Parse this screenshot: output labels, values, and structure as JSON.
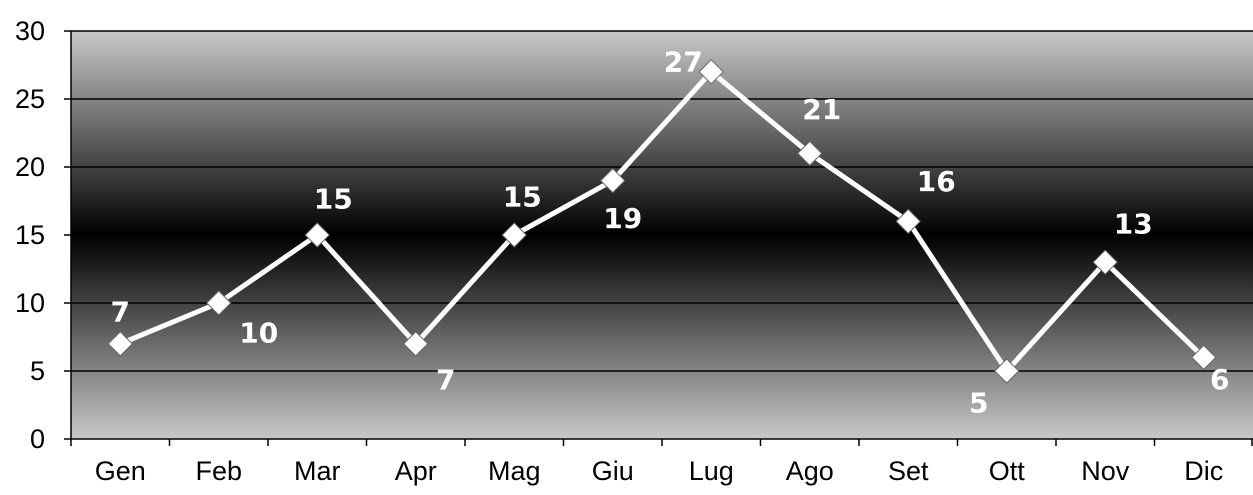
{
  "chart_data": {
    "type": "line",
    "categories": [
      "Gen",
      "Feb",
      "Mar",
      "Apr",
      "Mag",
      "Giu",
      "Lug",
      "Ago",
      "Set",
      "Ott",
      "Nov",
      "Dic"
    ],
    "series": [
      {
        "values": [
          7,
          10,
          15,
          7,
          15,
          19,
          27,
          21,
          16,
          5,
          13,
          6
        ]
      }
    ],
    "ylim": [
      0,
      30
    ],
    "yticks": [
      0,
      5,
      10,
      15,
      20,
      25,
      30
    ],
    "grid": true,
    "legend": "none",
    "marker": "diamond",
    "data_labels": true,
    "colors": {
      "line": "#ffffff",
      "plot_bg_edge": "#c8c8c8",
      "plot_bg_mid": "#000000",
      "gridline": "#000000"
    }
  }
}
